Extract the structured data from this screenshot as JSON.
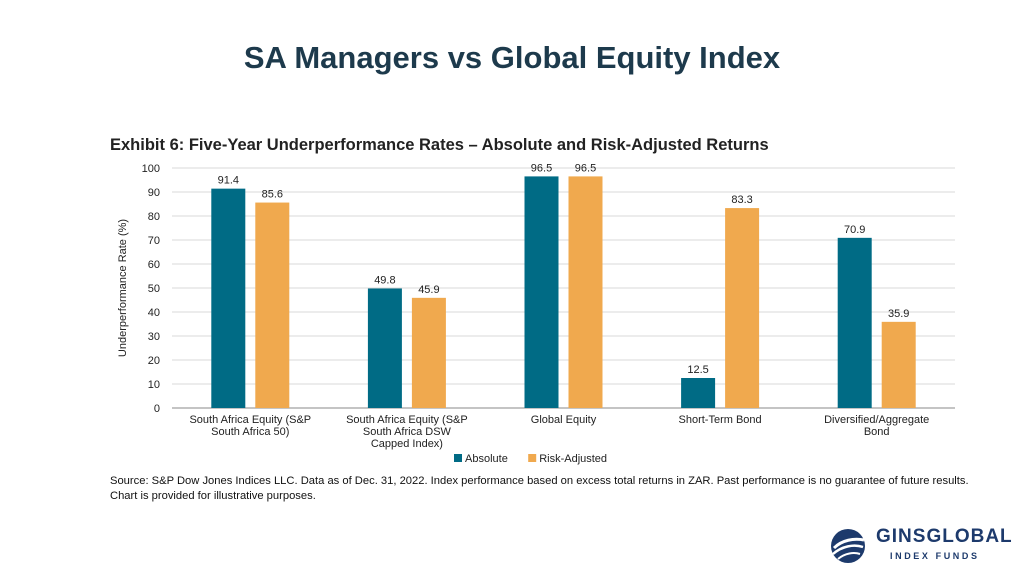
{
  "slide": {
    "title": "SA Managers vs Global Equity Index"
  },
  "exhibit_title": "Exhibit 6: Five-Year Underperformance Rates – Absolute and Risk-Adjusted Returns",
  "source_note": "Source: S&P Dow Jones Indices LLC.  Data as of Dec. 31, 2022.  Index performance based on excess total returns in ZAR.  Past performance is no guarantee of future results.  Chart is provided for illustrative purposes.",
  "logo": {
    "name": "GINSGLOBAL",
    "subtitle": "INDEX FUNDS",
    "icon": "globe-swoosh-icon"
  },
  "chart_data": {
    "type": "bar",
    "title": "Exhibit 6: Five-Year Underperformance Rates – Absolute and Risk-Adjusted Returns",
    "ylabel": "Underperformance Rate (%)",
    "xlabel": "",
    "ylim": [
      0,
      100
    ],
    "yticks": [
      0,
      10,
      20,
      30,
      40,
      50,
      60,
      70,
      80,
      90,
      100
    ],
    "grid": true,
    "legend": "bottom-center",
    "categories": [
      [
        "South Africa Equity (S&P",
        "South Africa 50)"
      ],
      [
        "South Africa Equity (S&P",
        "South Africa DSW",
        "Capped Index)"
      ],
      [
        "Global Equity"
      ],
      [
        "Short-Term Bond"
      ],
      [
        "Diversified/Aggregate",
        "Bond"
      ]
    ],
    "series": [
      {
        "name": "Absolute",
        "color": "#006b85",
        "values": [
          91.4,
          49.8,
          96.5,
          12.5,
          70.9
        ]
      },
      {
        "name": "Risk-Adjusted",
        "color": "#f0a94e",
        "values": [
          85.6,
          45.9,
          96.5,
          83.3,
          35.9
        ]
      }
    ]
  }
}
